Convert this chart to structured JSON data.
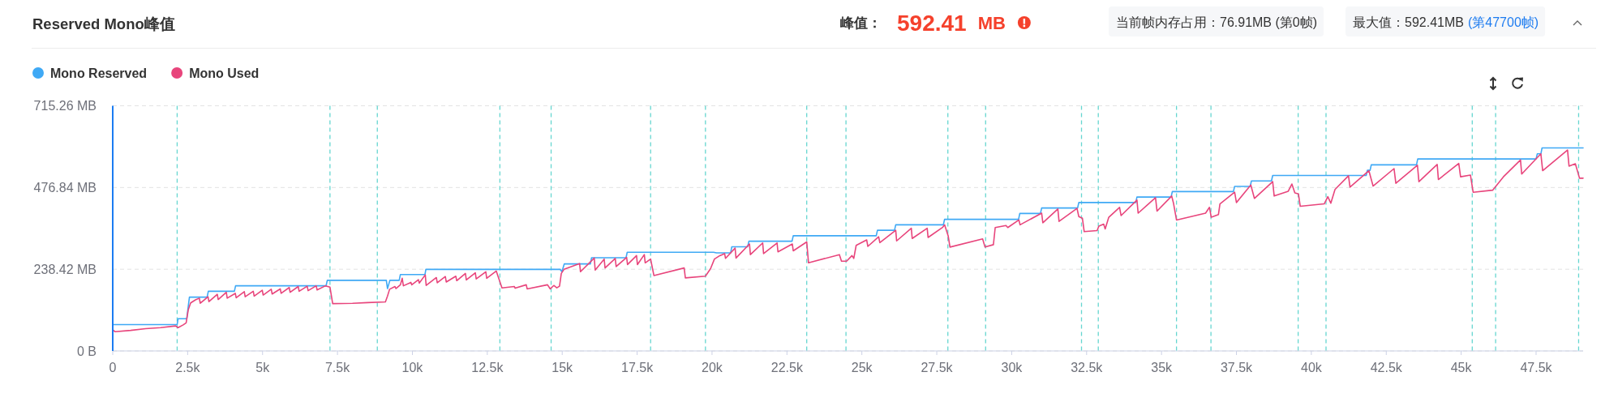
{
  "chart_data": {
    "type": "line",
    "title": "Reserved Mono峰值",
    "annotations": [
      "峰值：",
      "592.41",
      "MB",
      "当前帧内存占用：76.91MB (第0帧)",
      "最大值：592.41MB",
      "(第47700帧)"
    ],
    "series": [
      {
        "name": "Mono Reserved",
        "color": "#3fa9f5",
        "x": [
          0,
          2150,
          2180,
          2470,
          2530,
          2560,
          3150,
          3190,
          4060,
          4100,
          7120,
          7160,
          9130,
          9170,
          9250,
          9560,
          9600,
          10420,
          10450,
          14930,
          14990,
          15070,
          15940,
          15980,
          17130,
          17170,
          20050,
          20150,
          20620,
          20660,
          21190,
          21230,
          22670,
          22710,
          25480,
          25520,
          26090,
          26130,
          27720,
          27760,
          30230,
          30270,
          30960,
          31000,
          32200,
          32240,
          34140,
          34180,
          35320,
          35360,
          37400,
          37440,
          37960,
          38000,
          38670,
          38710,
          41830,
          41870,
          41960,
          42000,
          43510,
          43550,
          47500,
          47540,
          47660,
          47700,
          49070
        ],
        "values": [
          76.91,
          77,
          94,
          94,
          137,
          157,
          157,
          174,
          174,
          190,
          190,
          206,
          206,
          182,
          206,
          206,
          223,
          223,
          238,
          238,
          231,
          254,
          254,
          272,
          272,
          288,
          288,
          286,
          286,
          304,
          304,
          320,
          320,
          336,
          336,
          352,
          352,
          368,
          368,
          384,
          384,
          401,
          401,
          417,
          417,
          433,
          433,
          449,
          449,
          465,
          465,
          480,
          480,
          496,
          496,
          512,
          512,
          527,
          527,
          543,
          543,
          560,
          560,
          575,
          575,
          592.41,
          592.41
        ]
      },
      {
        "name": "Mono Used",
        "color": "#e8457c",
        "x": [
          0,
          80,
          600,
          1100,
          1600,
          2100,
          2180,
          2350,
          2450,
          2520,
          2600,
          2760,
          2890,
          2920,
          3180,
          3210,
          3490,
          3520,
          3790,
          3820,
          4090,
          4120,
          4390,
          4420,
          4690,
          4720,
          4990,
          5020,
          5290,
          5320,
          5590,
          5620,
          5890,
          5920,
          6190,
          6220,
          6490,
          6520,
          6790,
          6820,
          7100,
          7250,
          7340,
          8000,
          8500,
          9100,
          9170,
          9240,
          9420,
          9450,
          9600,
          9660,
          9700,
          9950,
          9980,
          10200,
          10230,
          10430,
          10460,
          10800,
          10830,
          11100,
          11130,
          11450,
          11480,
          11770,
          11800,
          12100,
          12130,
          12450,
          12480,
          12800,
          12990,
          13400,
          13430,
          13800,
          13830,
          14510,
          14600,
          14720,
          14820,
          14910,
          14970,
          15060,
          15580,
          15610,
          16070,
          16100,
          16400,
          16430,
          16770,
          16800,
          17150,
          17180,
          17480,
          17510,
          17740,
          17770,
          17950,
          18060,
          19070,
          19110,
          19780,
          19950,
          20080,
          20260,
          20420,
          20450,
          20770,
          20800,
          21250,
          21280,
          21690,
          21720,
          22170,
          22200,
          22680,
          22710,
          23160,
          23220,
          24250,
          24320,
          24490,
          24670,
          24730,
          24810,
          25160,
          25200,
          25560,
          25600,
          26130,
          26160,
          26650,
          26680,
          27180,
          27210,
          27700,
          27760,
          27880,
          27940,
          29030,
          29110,
          29390,
          29450,
          29810,
          29870,
          30240,
          30280,
          31000,
          31040,
          31540,
          31580,
          32180,
          32240,
          32360,
          32420,
          32850,
          32910,
          33070,
          33120,
          33240,
          33600,
          33650,
          34180,
          34220,
          34800,
          34850,
          35340,
          35400,
          35500,
          36470,
          36600,
          36660,
          36900,
          36950,
          37440,
          37500,
          37980,
          38100,
          38710,
          38760,
          39230,
          39350,
          39450,
          39570,
          39630,
          40430,
          40550,
          40650,
          40790,
          41240,
          41290,
          41920,
          42060,
          42760,
          42820,
          43540,
          43590,
          44200,
          44240,
          44920,
          44980,
          45310,
          45400,
          46050,
          46410,
          46980,
          47020,
          47660,
          47720,
          48550,
          48600,
          48810,
          48950,
          49070
        ],
        "values": [
          62,
          56,
          60,
          65,
          68,
          73,
          68,
          76,
          82,
          120,
          140,
          149,
          154,
          139,
          158,
          144,
          165,
          150,
          171,
          154,
          168,
          155,
          173,
          158,
          174,
          160,
          177,
          163,
          180,
          166,
          181,
          168,
          185,
          171,
          188,
          174,
          189,
          176,
          190,
          178,
          190,
          186,
          138,
          139,
          141,
          143,
          160,
          180,
          188,
          182,
          193,
          212,
          190,
          200,
          193,
          208,
          198,
          222,
          191,
          214,
          199,
          217,
          201,
          218,
          205,
          226,
          207,
          228,
          210,
          231,
          212,
          233,
          184,
          188,
          183,
          193,
          181,
          193,
          181,
          191,
          184,
          189,
          226,
          238,
          255,
          231,
          271,
          236,
          268,
          242,
          270,
          246,
          273,
          252,
          278,
          252,
          281,
          257,
          268,
          220,
          242,
          213,
          218,
          240,
          268,
          278,
          284,
          270,
          300,
          271,
          312,
          281,
          315,
          284,
          315,
          289,
          312,
          292,
          318,
          257,
          281,
          262,
          262,
          278,
          270,
          308,
          324,
          305,
          333,
          316,
          352,
          321,
          358,
          328,
          358,
          331,
          361,
          368,
          336,
          303,
          327,
          303,
          310,
          360,
          366,
          360,
          382,
          368,
          402,
          374,
          414,
          378,
          416,
          392,
          387,
          348,
          351,
          364,
          370,
          356,
          390,
          419,
          395,
          440,
          402,
          447,
          408,
          452,
          431,
          382,
          402,
          419,
          390,
          398,
          429,
          463,
          433,
          484,
          445,
          494,
          452,
          466,
          487,
          461,
          458,
          422,
          429,
          450,
          431,
          471,
          511,
          478,
          526,
          481,
          532,
          489,
          542,
          494,
          544,
          500,
          547,
          508,
          513,
          463,
          469,
          508,
          557,
          516,
          575,
          526,
          586,
          539,
          546,
          504,
          504
        ]
      }
    ],
    "xlim": [
      0,
      49070
    ],
    "xticks": [
      0,
      {
        "value": 2500,
        "label": "2.5k"
      },
      {
        "value": 5000,
        "label": "5k"
      },
      {
        "value": 7500,
        "label": "7.5k"
      },
      {
        "value": 10000,
        "label": "10k"
      },
      {
        "value": 12500,
        "label": "12.5k"
      },
      {
        "value": 15000,
        "label": "15k"
      },
      {
        "value": 17500,
        "label": "17.5k"
      },
      {
        "value": 20000,
        "label": "20k"
      },
      {
        "value": 22500,
        "label": "22.5k"
      },
      {
        "value": 25000,
        "label": "25k"
      },
      {
        "value": 27500,
        "label": "27.5k"
      },
      {
        "value": 30000,
        "label": "30k"
      },
      {
        "value": 32500,
        "label": "32.5k"
      },
      {
        "value": 35000,
        "label": "35k"
      },
      {
        "value": 37500,
        "label": "37.5k"
      },
      {
        "value": 40000,
        "label": "40k"
      },
      {
        "value": 42500,
        "label": "42.5k"
      },
      {
        "value": 45000,
        "label": "45k"
      },
      {
        "value": 47500,
        "label": "47.5k"
      }
    ],
    "ylim": [
      0,
      715.26
    ],
    "yticks": [
      {
        "value": 0,
        "label": "0 B"
      },
      {
        "value": 238.42,
        "label": "238.42 MB"
      },
      {
        "value": 476.84,
        "label": "476.84 MB"
      },
      {
        "value": 715.26,
        "label": "715.26 MB"
      }
    ],
    "grid": "y",
    "legend": "top left",
    "ref_lines": [
      {
        "axis": "x",
        "value": 2150,
        "color": "#66d6d0",
        "line_style": "dashed"
      },
      {
        "axis": "x",
        "value": 7250,
        "color": "#66d6d0",
        "line_style": "dashed"
      },
      {
        "axis": "x",
        "value": 8830,
        "color": "#66d6d0",
        "line_style": "dashed"
      },
      {
        "axis": "x",
        "value": 12920,
        "color": "#66d6d0",
        "line_style": "dashed"
      },
      {
        "axis": "x",
        "value": 14630,
        "color": "#66d6d0",
        "line_style": "dashed"
      },
      {
        "axis": "x",
        "value": 17950,
        "color": "#66d6d0",
        "line_style": "dashed"
      },
      {
        "axis": "x",
        "value": 19780,
        "color": "#66d6d0",
        "line_style": "dashed"
      },
      {
        "axis": "x",
        "value": 23160,
        "color": "#66d6d0",
        "line_style": "dashed"
      },
      {
        "axis": "x",
        "value": 24470,
        "color": "#66d6d0",
        "line_style": "dashed"
      },
      {
        "axis": "x",
        "value": 27870,
        "color": "#66d6d0",
        "line_style": "dashed"
      },
      {
        "axis": "x",
        "value": 29130,
        "color": "#66d6d0",
        "line_style": "dashed"
      },
      {
        "axis": "x",
        "value": 32330,
        "color": "#66d6d0",
        "line_style": "dashed"
      },
      {
        "axis": "x",
        "value": 32890,
        "color": "#66d6d0",
        "line_style": "dashed"
      },
      {
        "axis": "x",
        "value": 35500,
        "color": "#66d6d0",
        "line_style": "dashed"
      },
      {
        "axis": "x",
        "value": 36650,
        "color": "#66d6d0",
        "line_style": "dashed"
      },
      {
        "axis": "x",
        "value": 39560,
        "color": "#66d6d0",
        "line_style": "dashed"
      },
      {
        "axis": "x",
        "value": 40490,
        "color": "#66d6d0",
        "line_style": "dashed"
      },
      {
        "axis": "x",
        "value": 45370,
        "color": "#66d6d0",
        "line_style": "dashed"
      },
      {
        "axis": "x",
        "value": 46150,
        "color": "#66d6d0",
        "line_style": "dashed"
      },
      {
        "axis": "x",
        "value": 48920,
        "color": "#66d6d0",
        "line_style": "dashed"
      }
    ]
  }
}
